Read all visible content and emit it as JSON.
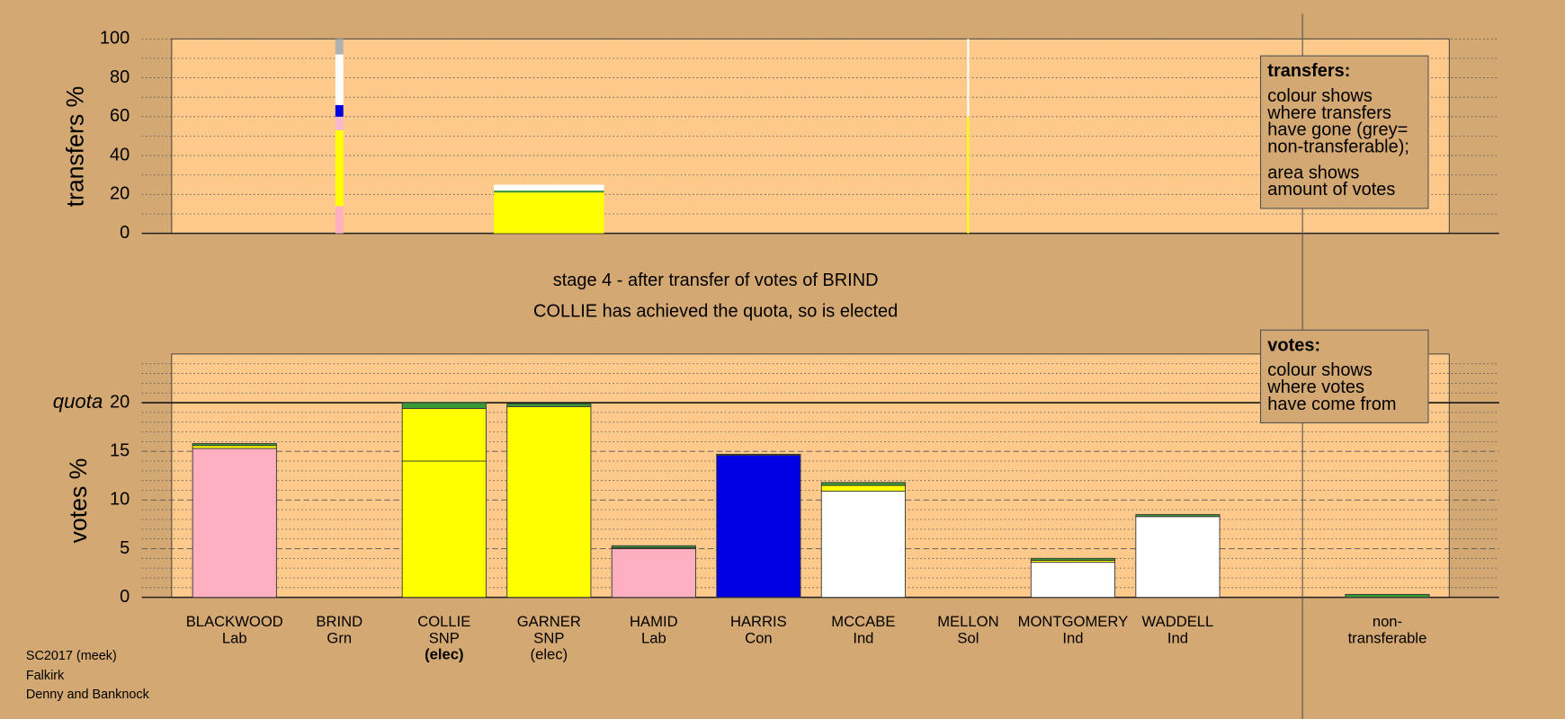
{
  "chart_data": [
    {
      "type": "bar",
      "stacked": true,
      "ylabel": "transfers %",
      "ylim": [
        0,
        100
      ],
      "yticks": [
        0,
        20,
        40,
        60,
        80,
        100
      ],
      "minor_grid": [
        10,
        30,
        50,
        70,
        90
      ],
      "sizes": [
        null,
        0.6,
        null,
        8.3,
        null,
        null,
        null,
        0.15,
        null,
        null,
        null
      ],
      "series": [
        {
          "color": "#ffb0c0",
          "values": [
            null,
            14,
            null,
            null,
            null,
            null,
            null,
            null,
            null,
            null,
            null
          ]
        },
        {
          "color": "#ffff00",
          "values": [
            null,
            39,
            null,
            21,
            null,
            null,
            null,
            60,
            null,
            null,
            null
          ]
        },
        {
          "color": "#f8b8d0",
          "values": [
            null,
            7,
            null,
            null,
            null,
            null,
            null,
            null,
            null,
            null,
            null
          ]
        },
        {
          "color": "#3a9a3a",
          "values": [
            null,
            null,
            null,
            1,
            null,
            null,
            null,
            null,
            null,
            null,
            null
          ]
        },
        {
          "color": "#0000e0",
          "values": [
            null,
            6,
            null,
            null,
            null,
            null,
            null,
            null,
            null,
            null,
            null
          ]
        },
        {
          "color": "#ffffff",
          "values": [
            null,
            26,
            null,
            3,
            null,
            null,
            null,
            40,
            null,
            null,
            null
          ]
        },
        {
          "color": "#b0b0b0",
          "values": [
            null,
            8,
            null,
            null,
            null,
            null,
            null,
            null,
            null,
            null,
            null
          ]
        }
      ]
    },
    {
      "type": "bar",
      "stacked": true,
      "ylabel": "votes %",
      "ylim": [
        0,
        25
      ],
      "yticks": [
        0,
        5,
        10,
        15,
        20
      ],
      "minor_grid": [
        1,
        2,
        3,
        4,
        6,
        7,
        8,
        9,
        11,
        12,
        13,
        14,
        16,
        17,
        18,
        19,
        21,
        22,
        23,
        24
      ],
      "quota": {
        "value": 20,
        "label": "quota"
      },
      "categories": [
        [
          "BLACKWOOD",
          "Lab"
        ],
        [
          "BRIND",
          "Grn"
        ],
        [
          "COLLIE",
          "SNP"
        ],
        [
          "GARNER",
          "SNP"
        ],
        [
          "HAMID",
          "Lab"
        ],
        [
          "HARRIS",
          "Con"
        ],
        [
          "MCCABE",
          "Ind"
        ],
        [
          "MELLON",
          "Sol"
        ],
        [
          "MONTGOMERY",
          "Ind"
        ],
        [
          "WADDELL",
          "Ind"
        ],
        [
          "non-",
          "transferable"
        ]
      ],
      "status": [
        null,
        null,
        "(elec)",
        "(elec)",
        null,
        null,
        null,
        null,
        null,
        null,
        null
      ],
      "status_bold": [
        false,
        false,
        true,
        false,
        false,
        false,
        false,
        false,
        false,
        false,
        false
      ],
      "series": [
        {
          "colors": [
            "#ffb0c0",
            "#3a9a3a",
            "#ffff00",
            "#ffff00",
            "#ffb0c0",
            "#0000e0",
            "#ffffff",
            "#ff0000",
            "#ffffff",
            "#ffffff",
            "#b0b0b0"
          ],
          "values": [
            15.3,
            0,
            14,
            19.6,
            5.0,
            14.6,
            10.9,
            0,
            3.6,
            8.3,
            0
          ]
        },
        {
          "color": "#ffff00",
          "values": [
            0.3,
            null,
            5.4,
            null,
            0.1,
            null,
            0.6,
            null,
            0.2,
            null,
            null
          ]
        },
        {
          "color": "#3a9a3a",
          "values": [
            0.2,
            null,
            0.6,
            0.3,
            0.2,
            0.1,
            0.3,
            null,
            0.2,
            0.2,
            0.3
          ]
        }
      ]
    }
  ],
  "stage_title": "stage 4 - after transfer of votes of BRIND",
  "stage_note": "COLLIE has achieved the quota, so is elected",
  "legend_transfers": {
    "title": "transfers:",
    "lines": [
      "colour shows",
      "where transfers",
      "have gone (grey=",
      "non-transferable);",
      "area shows",
      "amount of votes"
    ]
  },
  "legend_votes": {
    "title": "votes:",
    "lines": [
      "colour shows",
      "where votes",
      "have come from"
    ]
  },
  "footer": [
    "SC2017 (meek)",
    "Falkirk",
    "Denny and Banknock"
  ]
}
